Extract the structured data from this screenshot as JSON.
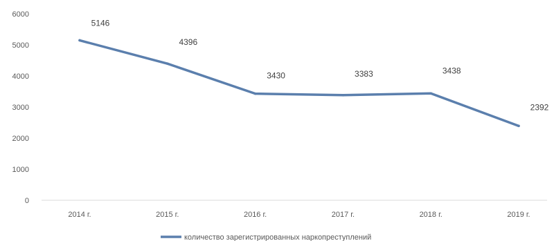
{
  "chart_data": {
    "type": "line",
    "title": "",
    "xlabel": "",
    "ylabel": "",
    "categories": [
      "2014 г.",
      "2015 г.",
      "2016 г.",
      "2017 г.",
      "2018 г.",
      "2019 г."
    ],
    "series": [
      {
        "name": "количество зарегистрированных наркопреступлений",
        "values": [
          5146,
          4396,
          3430,
          3383,
          3438,
          2392
        ],
        "color": "#5b7fad"
      }
    ],
    "data_labels": [
      "5146",
      "4396",
      "3430",
      "3383",
      "3438",
      "2392"
    ],
    "yticks": [
      "0",
      "1000",
      "2000",
      "3000",
      "4000",
      "5000",
      "6000"
    ],
    "ylim": [
      0,
      6000
    ],
    "grid": false,
    "legend_position": "bottom"
  }
}
